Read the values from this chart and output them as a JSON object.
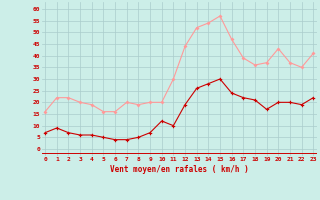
{
  "hours": [
    0,
    1,
    2,
    3,
    4,
    5,
    6,
    7,
    8,
    9,
    10,
    11,
    12,
    13,
    14,
    15,
    16,
    17,
    18,
    19,
    20,
    21,
    22,
    23
  ],
  "wind_avg": [
    7,
    9,
    7,
    6,
    6,
    5,
    4,
    4,
    5,
    7,
    12,
    10,
    19,
    26,
    28,
    30,
    24,
    22,
    21,
    17,
    20,
    20,
    19,
    22
  ],
  "wind_gust": [
    16,
    22,
    22,
    20,
    19,
    16,
    16,
    20,
    19,
    20,
    20,
    30,
    44,
    52,
    54,
    57,
    47,
    39,
    36,
    37,
    43,
    37,
    35,
    41
  ],
  "bg_color": "#cceee8",
  "grid_color": "#aacccc",
  "avg_color": "#cc0000",
  "gust_color": "#ff9999",
  "xlabel": "Vent moyen/en rafales ( km/h )",
  "xlabel_color": "#cc0000",
  "yticks": [
    0,
    5,
    10,
    15,
    20,
    25,
    30,
    35,
    40,
    45,
    50,
    55,
    60
  ],
  "ylim": [
    -3,
    63
  ],
  "xlim": [
    -0.3,
    23.3
  ]
}
